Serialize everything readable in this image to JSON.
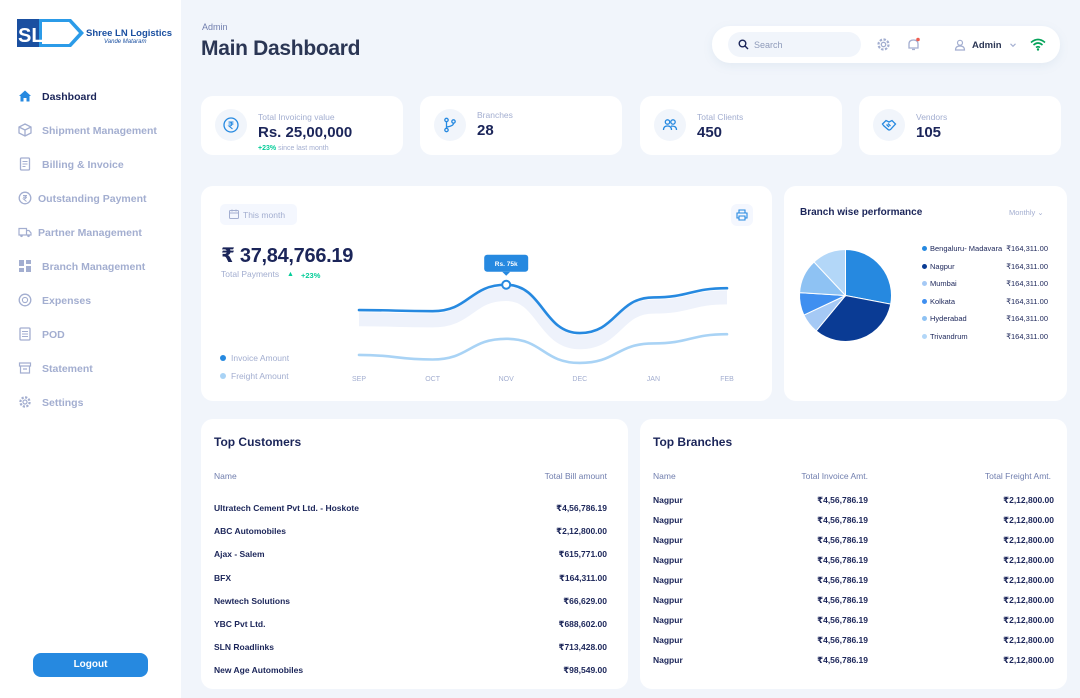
{
  "brand": {
    "mark": "SLN",
    "name": "Shree LN Logistics",
    "tagline": "Vande Mataram"
  },
  "sidebar": {
    "items": [
      {
        "label": "Dashboard",
        "icon": "home-icon",
        "active": true
      },
      {
        "label": "Shipment Management",
        "icon": "box-icon"
      },
      {
        "label": "Billing & Invoice",
        "icon": "invoice-icon"
      },
      {
        "label": "Outstanding Payment",
        "icon": "rupee-circle-icon"
      },
      {
        "label": "Partner Management",
        "icon": "truck-icon"
      },
      {
        "label": "Branch Management",
        "icon": "grid-icon"
      },
      {
        "label": "Expenses",
        "icon": "expense-icon"
      },
      {
        "label": "POD",
        "icon": "pod-icon"
      },
      {
        "label": "Statement",
        "icon": "statement-icon"
      },
      {
        "label": "Settings",
        "icon": "gear-icon"
      }
    ],
    "logout_label": "Logout"
  },
  "header": {
    "breadcrumb": "Admin",
    "title": "Main Dashboard",
    "search_placeholder": "Search",
    "user_name": "Admin"
  },
  "stats": [
    {
      "label": "Total Invoicing value",
      "value": "Rs. 25,00,000",
      "delta": "+23%",
      "delta_text": "since last month",
      "icon": "rupee-icon"
    },
    {
      "label": "Branches",
      "value": "28",
      "icon": "branch-icon"
    },
    {
      "label": "Total Clients",
      "value": "450",
      "icon": "clients-icon"
    },
    {
      "label": "Vendors",
      "value": "105",
      "icon": "handshake-icon"
    }
  ],
  "payments": {
    "period_label": "This month",
    "amount": "₹ 37,84,766.19",
    "subtitle": "Total Payments",
    "delta": "+23%",
    "tooltip": "Rs. 75k",
    "legend": [
      {
        "name": "Invoice Amount",
        "color": "#2689e0"
      },
      {
        "name": "Freight Amount",
        "color": "#a9d3f5"
      }
    ]
  },
  "chart_data": [
    {
      "type": "line",
      "x": [
        "SEP",
        "OCT",
        "NOV",
        "DEC",
        "JAN",
        "FEB"
      ],
      "series": [
        {
          "name": "Invoice Amount",
          "values": [
            53,
            52,
            75,
            33,
            64,
            72
          ]
        },
        {
          "name": "Freight Amount",
          "values": [
            14,
            10,
            28,
            7,
            24,
            32
          ]
        }
      ],
      "annotations": [
        {
          "x": "NOV",
          "text": "Rs. 75k"
        }
      ],
      "ylim": [
        0,
        100
      ]
    },
    {
      "type": "pie",
      "title": "Branch wise performance",
      "filter": "Monthly",
      "labels": [
        "Bengaluru- Madavara",
        "Nagpur",
        "Mumbai",
        "Kolkata",
        "Hyderabad",
        "Trivandrum"
      ],
      "values": [
        28,
        33,
        7,
        8,
        12,
        12
      ],
      "display_values": [
        "₹164,311.00",
        "₹164,311.00",
        "₹164,311.00",
        "₹164,311.00",
        "₹164,311.00",
        "₹164,311.00"
      ],
      "colors": [
        "#2689e0",
        "#0a3b94",
        "#a5c9f5",
        "#3f8ff0",
        "#8ec2f3",
        "#b3d7f8"
      ]
    }
  ],
  "top_customers": {
    "title": "Top Customers",
    "columns": [
      "Name",
      "Total Bill amount"
    ],
    "rows": [
      [
        "Ultratech Cement Pvt Ltd. - Hoskote",
        "₹4,56,786.19"
      ],
      [
        "ABC Automobiles",
        "₹2,12,800.00"
      ],
      [
        "Ajax - Salem",
        "₹615,771.00"
      ],
      [
        "BFX",
        "₹164,311.00"
      ],
      [
        "Newtech Solutions",
        "₹66,629.00"
      ],
      [
        "YBC Pvt Ltd.",
        "₹688,602.00"
      ],
      [
        "SLN Roadlinks",
        "₹713,428.00"
      ],
      [
        "New Age Automobiles",
        "₹98,549.00"
      ]
    ]
  },
  "top_branches": {
    "title": "Top Branches",
    "columns": [
      "Name",
      "Total Invoice Amt.",
      "Total Freight Amt."
    ],
    "rows": [
      [
        "Nagpur",
        "₹4,56,786.19",
        "₹2,12,800.00"
      ],
      [
        "Nagpur",
        "₹4,56,786.19",
        "₹2,12,800.00"
      ],
      [
        "Nagpur",
        "₹4,56,786.19",
        "₹2,12,800.00"
      ],
      [
        "Nagpur",
        "₹4,56,786.19",
        "₹2,12,800.00"
      ],
      [
        "Nagpur",
        "₹4,56,786.19",
        "₹2,12,800.00"
      ],
      [
        "Nagpur",
        "₹4,56,786.19",
        "₹2,12,800.00"
      ],
      [
        "Nagpur",
        "₹4,56,786.19",
        "₹2,12,800.00"
      ],
      [
        "Nagpur",
        "₹4,56,786.19",
        "₹2,12,800.00"
      ],
      [
        "Nagpur",
        "₹4,56,786.19",
        "₹2,12,800.00"
      ]
    ]
  }
}
